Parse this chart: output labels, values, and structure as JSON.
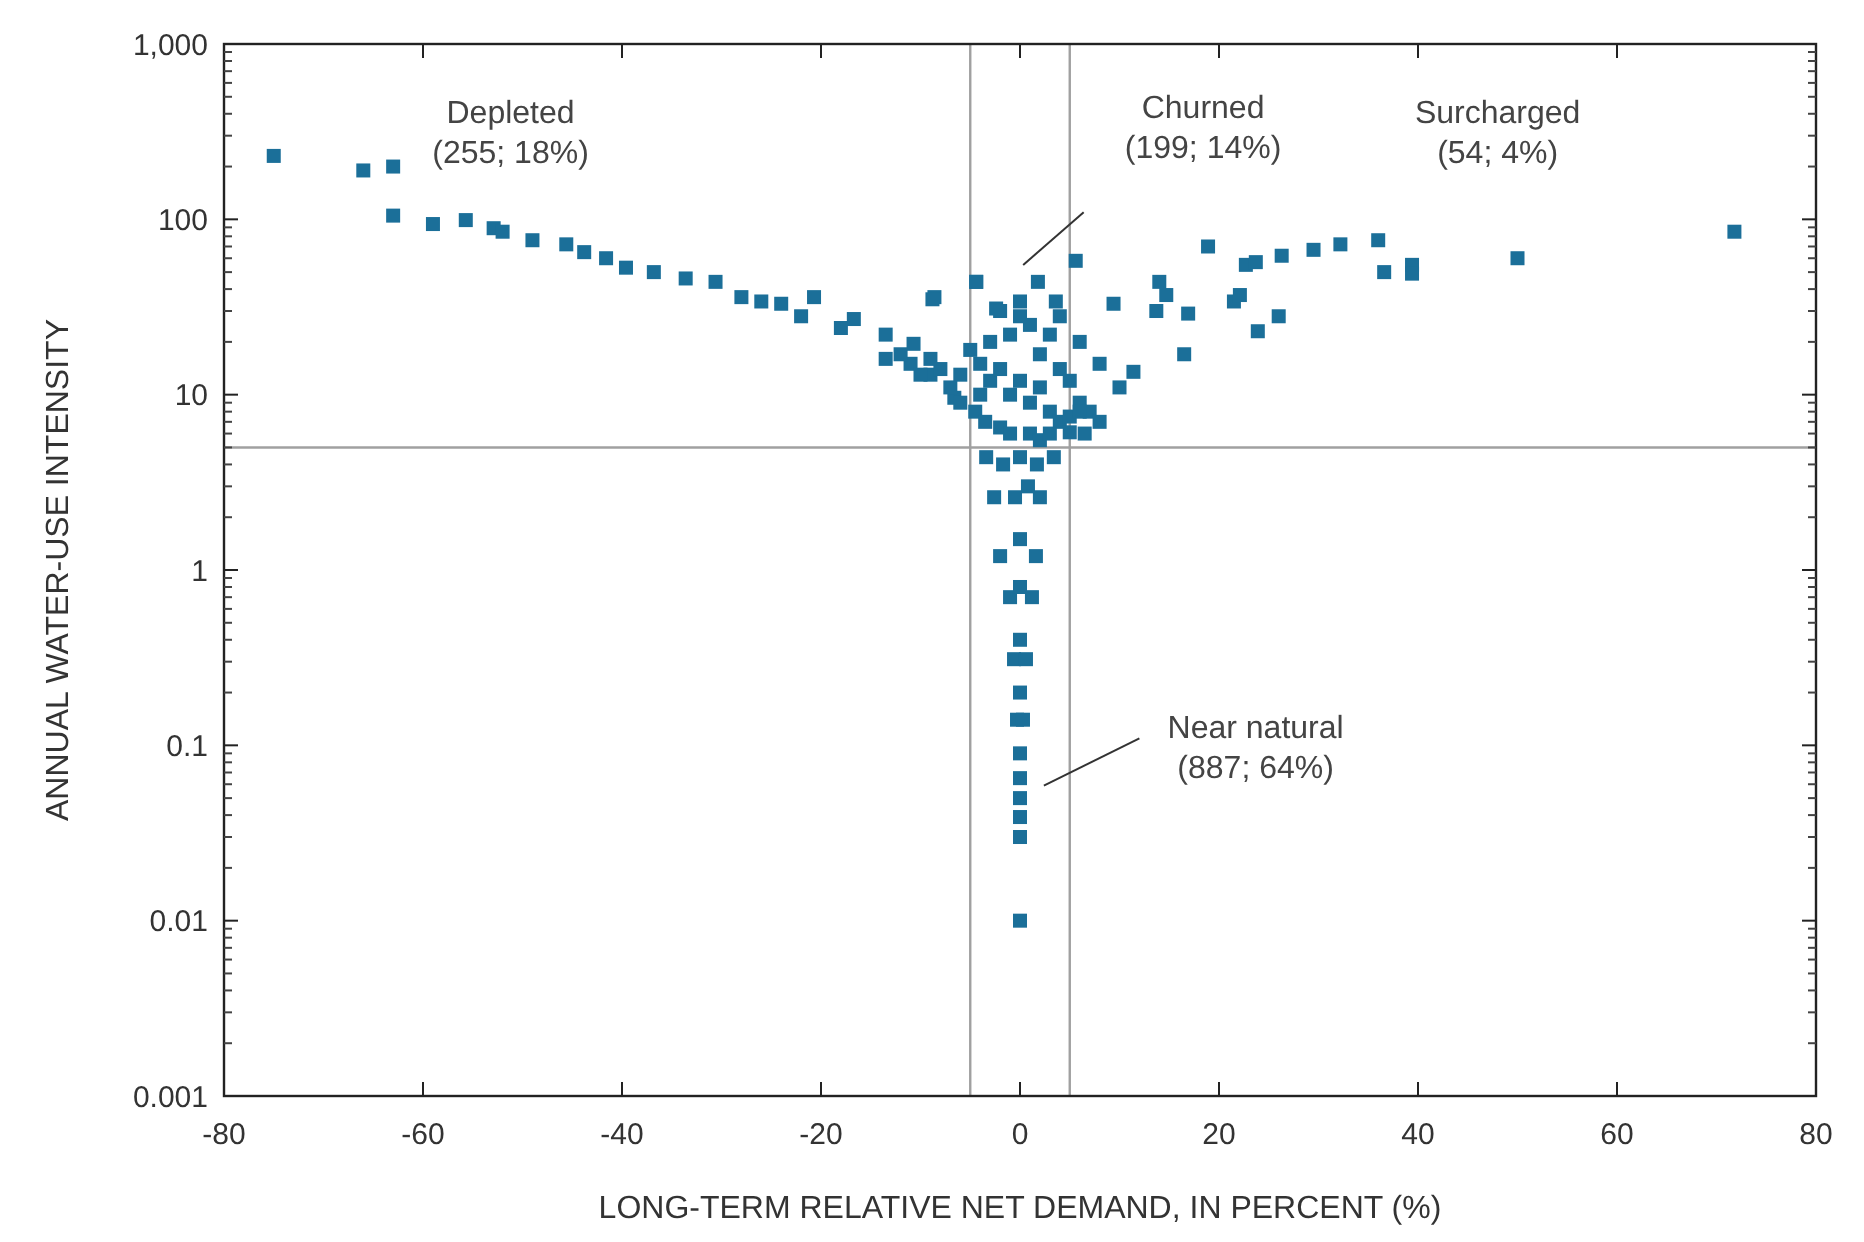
{
  "chart_data": {
    "type": "scatter",
    "xlabel": "LONG-TERM RELATIVE NET DEMAND, IN PERCENT (%)",
    "ylabel": "ANNUAL WATER-USE INTENSITY",
    "log": "y",
    "marker": "square",
    "grid": false,
    "xlim": [
      -80,
      80
    ],
    "xticks": [
      -80,
      -60,
      -40,
      -20,
      0,
      20,
      40,
      60,
      80
    ],
    "ylim": [
      0.001,
      1000
    ],
    "yticks": [
      {
        "value": 0.001,
        "label": "0.001"
      },
      {
        "value": 0.01,
        "label": "0.01"
      },
      {
        "value": 0.1,
        "label": "0.1"
      },
      1,
      10,
      100,
      {
        "value": 1000,
        "label": "1,000"
      }
    ],
    "ref_lines": [
      {
        "axis": "x",
        "value": -5,
        "color": "#a0a0a0"
      },
      {
        "axis": "x",
        "value": 5,
        "color": "#a0a0a0"
      },
      {
        "axis": "y",
        "value": 5,
        "color": "#a0a0a0"
      }
    ],
    "annotations": [
      "Depleted\n(255; 18%)",
      "Churned\n(199; 14%)",
      "Surcharged\n(54; 4%)",
      "Near natural\n(887; 64%)"
    ],
    "series": [
      {
        "color": "#1b6f99",
        "x": [
          -75,
          -66,
          -63,
          -63,
          -59,
          -55.7,
          -52.9,
          -52,
          -49,
          -45.6,
          -43.8,
          -41.6,
          -39.6,
          -36.8,
          -33.6,
          -30.6,
          -28,
          -24,
          -20.7,
          -16.7,
          -13.5,
          -10.7,
          -8.6,
          -4.4,
          -2.4,
          -6.6,
          -13.5,
          -18,
          -22,
          -26,
          -9,
          -11,
          5.6,
          -4.4,
          1.8,
          -8.8,
          0,
          3.6,
          9.4,
          14,
          14.7,
          13.7,
          16.9,
          16.5,
          10,
          11.4,
          18.9,
          22.7,
          23.7,
          21.5,
          22.1,
          23.9,
          26,
          26.3,
          29.5,
          32.2,
          36,
          36.6,
          39.4,
          39.4,
          50,
          71.8,
          -4,
          -3,
          -2,
          -1,
          0,
          1,
          2,
          3,
          4,
          -4.5,
          -3.5,
          -2,
          -1,
          1,
          2,
          3,
          -6,
          -7,
          -8,
          -9,
          -10,
          -12,
          -5,
          -3,
          -1,
          1,
          3,
          2,
          4,
          5,
          6,
          7,
          8,
          -2,
          0,
          4,
          6,
          8,
          -6,
          -4,
          5,
          6.5,
          6,
          5,
          -3.4,
          3.4,
          0,
          -1.7,
          1.7,
          -2.6,
          2,
          -0.5,
          0.8,
          -2,
          1.6,
          0,
          -1,
          1.2,
          0,
          -0.6,
          0.6,
          0,
          -0.3,
          0.3,
          0,
          0,
          0,
          0,
          0,
          0,
          0
        ],
        "values": [
          230,
          190,
          200,
          105,
          94,
          99,
          89,
          85,
          76,
          72,
          65,
          60,
          53,
          50,
          46,
          44,
          36,
          33,
          36,
          27,
          22,
          19.5,
          36,
          44,
          31,
          9.6,
          16,
          24,
          28,
          34,
          13,
          15,
          58,
          44,
          44,
          35,
          34,
          34,
          33,
          44,
          37,
          30,
          29,
          17,
          11,
          13.5,
          70,
          55,
          57,
          34,
          37,
          23,
          28,
          62,
          67,
          72,
          76,
          50,
          55,
          49,
          60,
          85,
          15,
          12,
          14,
          10,
          12,
          9,
          11,
          8,
          7,
          8,
          7,
          6.5,
          6,
          6,
          5.5,
          6,
          13,
          11,
          14,
          16,
          13,
          17,
          18,
          20,
          22,
          25,
          22,
          17,
          14,
          12,
          9,
          8,
          7,
          30,
          28,
          28,
          20,
          15,
          9,
          10,
          7.5,
          6,
          8,
          6.1,
          4.4,
          4.4,
          4.4,
          4,
          4,
          2.6,
          2.6,
          2.6,
          3,
          1.2,
          1.2,
          1.5,
          0.7,
          0.7,
          0.8,
          0.31,
          0.31,
          0.4,
          0.14,
          0.14,
          0.2,
          0.09,
          0.065,
          0.05,
          0.039,
          0.03,
          0.01
        ]
      }
    ]
  }
}
